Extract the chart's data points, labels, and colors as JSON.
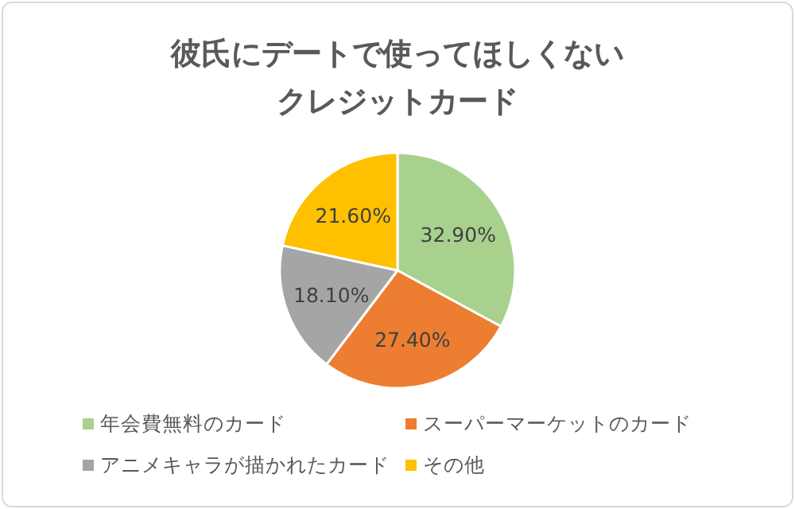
{
  "chart_data": {
    "type": "pie",
    "title": "彼氏にデートで使ってほしくないクレジットカード",
    "categories": [
      "年会費無料のカード",
      "スーパーマーケットのカード",
      "アニメキャラが描かれたカード",
      "その他"
    ],
    "values": [
      32.9,
      27.4,
      18.1,
      21.6
    ],
    "value_labels": [
      "32.90%",
      "27.40%",
      "18.10%",
      "21.60%"
    ],
    "colors": [
      "#a9d18e",
      "#ed7d31",
      "#a5a5a5",
      "#ffc000"
    ],
    "legend": "bottom"
  }
}
